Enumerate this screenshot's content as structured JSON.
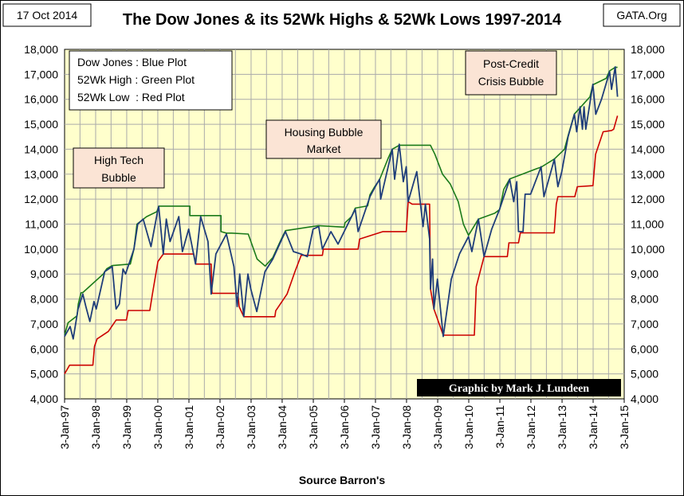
{
  "header": {
    "date": "17 Oct 2014",
    "title": "The Dow Jones & its 52Wk Highs & 52Wk Lows 1997-2014",
    "source_site": "GATA.Org"
  },
  "legend": {
    "lines": [
      "Dow Jones : Blue Plot",
      "52Wk High : Green Plot",
      "52Wk Low  : Red Plot"
    ]
  },
  "annotations": [
    {
      "lines": [
        "High Tech",
        "Bubble"
      ]
    },
    {
      "lines": [
        "Housing Bubble",
        "Market"
      ]
    },
    {
      "lines": [
        "Post-Credit",
        "Crisis Bubble"
      ]
    }
  ],
  "credit": "Graphic by Mark J. Lundeen",
  "colors": {
    "plot_background": "#ffffcc",
    "grid": "#aaaaaa",
    "dow": "#1f3d7a",
    "high": "#1a7a1a",
    "low": "#cc0000",
    "annotation_fill": "#fbe4d5",
    "credit_fill": "#000000",
    "credit_text": "#ffffff"
  },
  "chart_data": {
    "type": "line",
    "title": "The Dow Jones & its 52Wk Highs & 52Wk Lows 1997-2014",
    "xlabel": "Source Barron's",
    "ylabel": "",
    "x_ticks": [
      "3-Jan-97",
      "3-Jan-98",
      "3-Jan-99",
      "3-Jan-00",
      "3-Jan-01",
      "3-Jan-02",
      "3-Jan-03",
      "3-Jan-04",
      "3-Jan-05",
      "3-Jan-06",
      "3-Jan-07",
      "3-Jan-08",
      "3-Jan-09",
      "3-Jan-10",
      "3-Jan-11",
      "3-Jan-12",
      "3-Jan-13",
      "3-Jan-14",
      "3-Jan-15"
    ],
    "xlim": [
      "1997-01-03",
      "2015-01-03"
    ],
    "ylim": [
      4000,
      18000
    ],
    "y_ticks": [
      "4,000",
      "5,000",
      "6,000",
      "7,000",
      "8,000",
      "9,000",
      "10,000",
      "11,000",
      "12,000",
      "13,000",
      "14,000",
      "15,000",
      "16,000",
      "17,000",
      "18,000"
    ],
    "grid": true,
    "series": [
      {
        "name": "Dow Jones",
        "color": "#1f3d7a",
        "points": [
          [
            "1997-01-03",
            6500
          ],
          [
            "1997-03-10",
            6900
          ],
          [
            "1997-04-14",
            6400
          ],
          [
            "1997-06-10",
            7600
          ],
          [
            "1997-08-05",
            8200
          ],
          [
            "1997-09-10",
            7700
          ],
          [
            "1997-10-27",
            7100
          ],
          [
            "1997-12-15",
            7900
          ],
          [
            "1998-01-10",
            7600
          ],
          [
            "1998-04-20",
            9100
          ],
          [
            "1998-07-17",
            9300
          ],
          [
            "1998-08-31",
            7600
          ],
          [
            "1998-10-08",
            7800
          ],
          [
            "1998-11-20",
            9200
          ],
          [
            "1998-12-20",
            9000
          ],
          [
            "1999-03-29",
            10000
          ],
          [
            "1999-05-13",
            11000
          ],
          [
            "1999-07-15",
            11200
          ],
          [
            "1999-10-15",
            10100
          ],
          [
            "1999-12-31",
            11500
          ],
          [
            "2000-01-14",
            11700
          ],
          [
            "2000-03-07",
            9800
          ],
          [
            "2000-04-12",
            11200
          ],
          [
            "2000-05-26",
            10300
          ],
          [
            "2000-09-06",
            11300
          ],
          [
            "2000-10-18",
            9900
          ],
          [
            "2000-12-31",
            10800
          ],
          [
            "2001-03-22",
            9400
          ],
          [
            "2001-05-21",
            11300
          ],
          [
            "2001-08-15",
            10300
          ],
          [
            "2001-09-21",
            8200
          ],
          [
            "2001-11-15",
            9800
          ],
          [
            "2001-12-31",
            10100
          ],
          [
            "2002-03-19",
            10600
          ],
          [
            "2002-06-15",
            9300
          ],
          [
            "2002-07-23",
            7700
          ],
          [
            "2002-08-22",
            9000
          ],
          [
            "2002-10-09",
            7300
          ],
          [
            "2002-11-27",
            9000
          ],
          [
            "2002-12-31",
            8400
          ],
          [
            "2003-03-11",
            7500
          ],
          [
            "2003-06-15",
            9100
          ],
          [
            "2003-09-15",
            9600
          ],
          [
            "2003-12-31",
            10400
          ],
          [
            "2004-02-11",
            10700
          ],
          [
            "2004-05-15",
            9900
          ],
          [
            "2004-08-13",
            9800
          ],
          [
            "2004-10-25",
            9700
          ],
          [
            "2004-12-31",
            10800
          ],
          [
            "2005-03-07",
            10900
          ],
          [
            "2005-04-20",
            10000
          ],
          [
            "2005-07-29",
            10700
          ],
          [
            "2005-10-20",
            10200
          ],
          [
            "2005-12-31",
            10700
          ],
          [
            "2006-05-10",
            11600
          ],
          [
            "2006-06-13",
            10700
          ],
          [
            "2006-10-31",
            12100
          ],
          [
            "2006-12-31",
            12500
          ],
          [
            "2007-02-20",
            12800
          ],
          [
            "2007-03-05",
            12000
          ],
          [
            "2007-07-19",
            14000
          ],
          [
            "2007-08-16",
            12800
          ],
          [
            "2007-10-09",
            14200
          ],
          [
            "2007-11-26",
            12700
          ],
          [
            "2007-12-31",
            13300
          ],
          [
            "2008-01-22",
            11900
          ],
          [
            "2008-05-02",
            13100
          ],
          [
            "2008-07-15",
            10900
          ],
          [
            "2008-08-11",
            11800
          ],
          [
            "2008-09-30",
            10400
          ],
          [
            "2008-10-10",
            8400
          ],
          [
            "2008-11-04",
            9600
          ],
          [
            "2008-11-20",
            7600
          ],
          [
            "2008-12-31",
            8800
          ],
          [
            "2009-03-09",
            6500
          ],
          [
            "2009-06-12",
            8800
          ],
          [
            "2009-09-15",
            9800
          ],
          [
            "2009-12-31",
            10500
          ],
          [
            "2010-02-08",
            9900
          ],
          [
            "2010-04-26",
            11200
          ],
          [
            "2010-07-02",
            9700
          ],
          [
            "2010-09-30",
            10800
          ],
          [
            "2010-12-31",
            11600
          ],
          [
            "2011-04-29",
            12800
          ],
          [
            "2011-06-15",
            11900
          ],
          [
            "2011-07-21",
            12700
          ],
          [
            "2011-08-10",
            10700
          ],
          [
            "2011-10-03",
            10700
          ],
          [
            "2011-10-27",
            12200
          ],
          [
            "2011-12-31",
            12200
          ],
          [
            "2012-05-01",
            13300
          ],
          [
            "2012-06-04",
            12100
          ],
          [
            "2012-10-05",
            13600
          ],
          [
            "2012-11-15",
            12500
          ],
          [
            "2012-12-31",
            13100
          ],
          [
            "2013-03-15",
            14500
          ],
          [
            "2013-05-28",
            15400
          ],
          [
            "2013-06-24",
            14700
          ],
          [
            "2013-08-02",
            15700
          ],
          [
            "2013-08-30",
            14800
          ],
          [
            "2013-09-18",
            15700
          ],
          [
            "2013-10-09",
            14800
          ],
          [
            "2013-12-31",
            16600
          ],
          [
            "2014-02-03",
            15400
          ],
          [
            "2014-04-11",
            16000
          ],
          [
            "2014-07-16",
            17100
          ],
          [
            "2014-08-07",
            16400
          ],
          [
            "2014-09-19",
            17300
          ],
          [
            "2014-10-16",
            16100
          ]
        ]
      },
      {
        "name": "52Wk High",
        "color": "#1a7a1a",
        "points": [
          [
            "1997-01-03",
            6560
          ],
          [
            "1997-02-13",
            7050
          ],
          [
            "1997-05-30",
            7330
          ],
          [
            "1997-06-13",
            7800
          ],
          [
            "1997-07-16",
            8250
          ],
          [
            "1997-08-06",
            8260
          ],
          [
            "1998-04-02",
            9000
          ],
          [
            "1998-05-13",
            9210
          ],
          [
            "1998-07-17",
            9340
          ],
          [
            "1999-02-15",
            9400
          ],
          [
            "1999-03-29",
            10000
          ],
          [
            "1999-05-03",
            11000
          ],
          [
            "1999-08-25",
            11300
          ],
          [
            "1999-12-23",
            11500
          ],
          [
            "2000-01-14",
            11720
          ],
          [
            "2001-01-14",
            11720
          ],
          [
            "2001-01-14",
            11340
          ],
          [
            "2002-01-14",
            11340
          ],
          [
            "2002-01-14",
            10700
          ],
          [
            "2002-03-19",
            10640
          ],
          [
            "2002-05-20",
            10640
          ],
          [
            "2002-12-01",
            10600
          ],
          [
            "2003-03-15",
            9600
          ],
          [
            "2003-06-17",
            9320
          ],
          [
            "2003-09-15",
            9660
          ],
          [
            "2003-12-31",
            10450
          ],
          [
            "2004-02-11",
            10740
          ],
          [
            "2005-03-04",
            10940
          ],
          [
            "2005-12-31",
            10880
          ],
          [
            "2006-01-10",
            11050
          ],
          [
            "2006-03-28",
            11300
          ],
          [
            "2006-05-10",
            11640
          ],
          [
            "2006-10-03",
            11730
          ],
          [
            "2006-10-30",
            12170
          ],
          [
            "2006-12-27",
            12510
          ],
          [
            "2007-02-20",
            12780
          ],
          [
            "2007-05-31",
            13630
          ],
          [
            "2007-07-19",
            14000
          ],
          [
            "2007-10-09",
            14160
          ],
          [
            "2008-10-09",
            14160
          ],
          [
            "2008-12-01",
            13800
          ],
          [
            "2009-03-01",
            13000
          ],
          [
            "2009-06-01",
            12600
          ],
          [
            "2009-09-01",
            11900
          ],
          [
            "2009-11-01",
            11000
          ],
          [
            "2009-12-31",
            10550
          ],
          [
            "2010-04-26",
            11200
          ],
          [
            "2010-11-05",
            11440
          ],
          [
            "2010-12-31",
            11580
          ],
          [
            "2011-02-18",
            12390
          ],
          [
            "2011-04-29",
            12810
          ],
          [
            "2012-03-16",
            13230
          ],
          [
            "2012-05-01",
            13280
          ],
          [
            "2012-10-05",
            13610
          ],
          [
            "2013-02-01",
            14000
          ],
          [
            "2013-03-15",
            14540
          ],
          [
            "2013-05-28",
            15410
          ],
          [
            "2013-08-02",
            15660
          ],
          [
            "2013-11-26",
            16100
          ],
          [
            "2013-12-31",
            16580
          ],
          [
            "2014-06-05",
            16840
          ],
          [
            "2014-07-16",
            17140
          ],
          [
            "2014-09-19",
            17280
          ],
          [
            "2014-10-16",
            17280
          ]
        ]
      },
      {
        "name": "52Wk Low",
        "color": "#cc0000",
        "points": [
          [
            "1997-01-03",
            5000
          ],
          [
            "1997-03-03",
            5350
          ],
          [
            "1997-12-01",
            5350
          ],
          [
            "1997-12-20",
            6100
          ],
          [
            "1998-01-20",
            6400
          ],
          [
            "1998-06-01",
            6700
          ],
          [
            "1998-09-01",
            7160
          ],
          [
            "1998-12-31",
            7160
          ],
          [
            "1999-01-20",
            7540
          ],
          [
            "1999-10-01",
            7540
          ],
          [
            "1999-11-01",
            8200
          ],
          [
            "2000-01-05",
            9500
          ],
          [
            "2000-03-07",
            9800
          ],
          [
            "2001-03-01",
            9800
          ],
          [
            "2001-03-22",
            9400
          ],
          [
            "2001-09-21",
            9400
          ],
          [
            "2001-10-01",
            8230
          ],
          [
            "2002-08-01",
            8230
          ],
          [
            "2002-08-15",
            7700
          ],
          [
            "2002-10-09",
            7290
          ],
          [
            "2003-10-09",
            7290
          ],
          [
            "2003-10-20",
            7530
          ],
          [
            "2004-03-01",
            8200
          ],
          [
            "2004-06-01",
            9100
          ],
          [
            "2004-08-13",
            9750
          ],
          [
            "2005-04-20",
            9750
          ],
          [
            "2005-05-01",
            10000
          ],
          [
            "2006-06-13",
            10000
          ],
          [
            "2006-07-01",
            10400
          ],
          [
            "2007-04-01",
            10700
          ],
          [
            "2007-12-31",
            10700
          ],
          [
            "2008-01-22",
            11900
          ],
          [
            "2008-03-10",
            11800
          ],
          [
            "2008-09-30",
            11800
          ],
          [
            "2008-10-10",
            8400
          ],
          [
            "2008-11-20",
            7600
          ],
          [
            "2009-03-09",
            6550
          ],
          [
            "2010-03-09",
            6550
          ],
          [
            "2010-04-01",
            8500
          ],
          [
            "2010-07-02",
            9700
          ],
          [
            "2011-04-01",
            9700
          ],
          [
            "2011-04-20",
            10250
          ],
          [
            "2011-08-10",
            10250
          ],
          [
            "2011-09-01",
            10650
          ],
          [
            "2012-10-03",
            10650
          ],
          [
            "2012-10-27",
            11800
          ],
          [
            "2012-11-15",
            12100
          ],
          [
            "2013-06-01",
            12100
          ],
          [
            "2013-07-01",
            12500
          ],
          [
            "2014-01-01",
            12540
          ],
          [
            "2014-02-01",
            13800
          ],
          [
            "2014-05-01",
            14700
          ],
          [
            "2014-08-07",
            14750
          ],
          [
            "2014-09-01",
            14800
          ],
          [
            "2014-10-16",
            15340
          ]
        ]
      }
    ]
  }
}
